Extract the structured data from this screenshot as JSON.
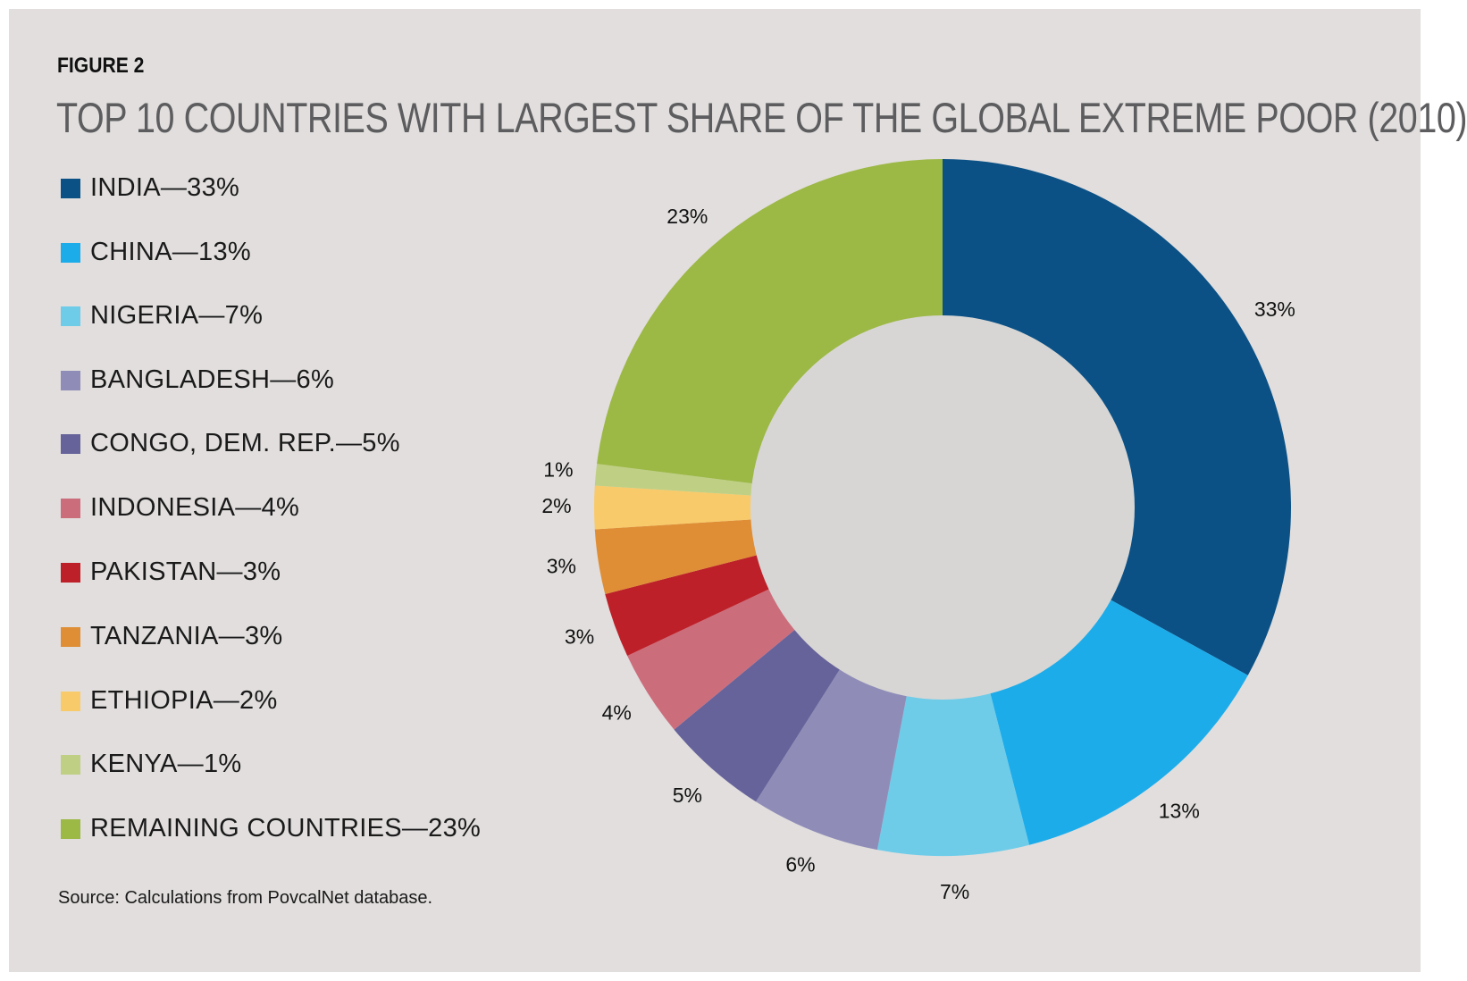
{
  "figure": {
    "label": "FIGURE 2",
    "title": "TOP 10 COUNTRIES WITH LARGEST SHARE OF THE GLOBAL EXTREME POOR (2010)",
    "source": "Source: Calculations from PovcalNet database."
  },
  "legend": [
    {
      "text": "INDIA—33%",
      "color": "#0b5186"
    },
    {
      "text": "CHINA—13%",
      "color": "#1dacea"
    },
    {
      "text": "NIGERIA—7%",
      "color": "#6ecce9"
    },
    {
      "text": "BANGLADESH—6%",
      "color": "#8f8db8"
    },
    {
      "text": "CONGO, DEM. REP.—5%",
      "color": "#66639b"
    },
    {
      "text": "INDONESIA—4%",
      "color": "#cc6d7c"
    },
    {
      "text": "PAKISTAN—3%",
      "color": "#bd2028"
    },
    {
      "text": "TANZANIA—3%",
      "color": "#df8e35"
    },
    {
      "text": "ETHIOPIA—2%",
      "color": "#f9ca69"
    },
    {
      "text": "KENYA—1%",
      "color": "#bfd084"
    },
    {
      "text": "REMAINING COUNTRIES—23%",
      "color": "#9cb845"
    }
  ],
  "chart_data": {
    "type": "pie",
    "style": "donut",
    "start": "top, clockwise",
    "categories": [
      "INDIA",
      "CHINA",
      "NIGERIA",
      "BANGLADESH",
      "CONGO, DEM. REP.",
      "INDONESIA",
      "PAKISTAN",
      "TANZANIA",
      "ETHIOPIA",
      "KENYA",
      "REMAINING COUNTRIES"
    ],
    "values": [
      33,
      13,
      7,
      6,
      5,
      4,
      3,
      3,
      2,
      1,
      23
    ],
    "labels": [
      "33%",
      "13%",
      "7%",
      "6%",
      "5%",
      "4%",
      "3%",
      "3%",
      "2%",
      "1%",
      "23%"
    ],
    "colors": [
      "#0b5186",
      "#1dacea",
      "#6ecce9",
      "#8f8db8",
      "#66639b",
      "#cc6d7c",
      "#bd2028",
      "#df8e35",
      "#f9ca69",
      "#bfd084",
      "#9cb845"
    ],
    "hole_color": "#d7d6d4",
    "title": "TOP 10 COUNTRIES WITH LARGEST SHARE OF THE GLOBAL EXTREME POOR (2010)",
    "legend": "left"
  }
}
